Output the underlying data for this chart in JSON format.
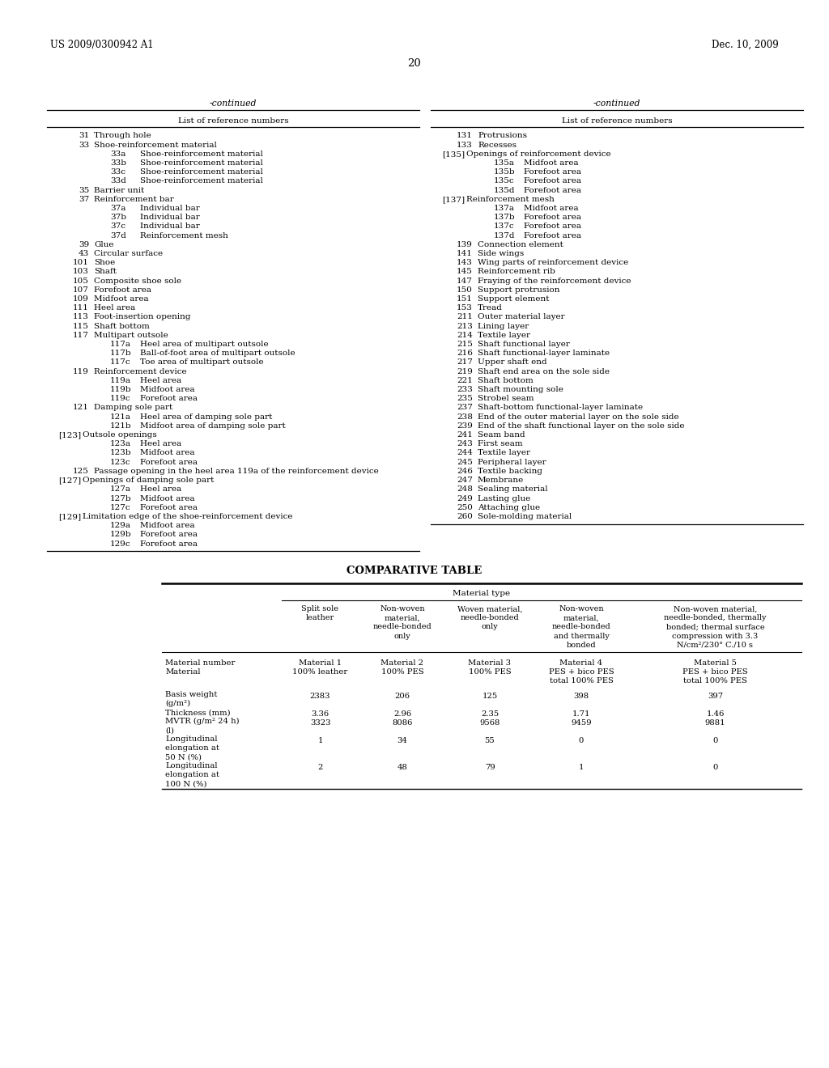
{
  "bg_color": "#ffffff",
  "header_left": "US 2009/0300942 A1",
  "header_right": "Dec. 10, 2009",
  "page_number": "20",
  "left_entries": [
    [
      "31",
      "Through hole",
      0
    ],
    [
      "33",
      "Shoe-reinforcement material",
      0
    ],
    [
      "33a",
      "Shoe-reinforcement material",
      2
    ],
    [
      "33b",
      "Shoe-reinforcement material",
      2
    ],
    [
      "33c",
      "Shoe-reinforcement material",
      2
    ],
    [
      "33d",
      "Shoe-reinforcement material",
      2
    ],
    [
      "35",
      "Barrier unit",
      0
    ],
    [
      "37",
      "Reinforcement bar",
      0
    ],
    [
      "37a",
      "Individual bar",
      2
    ],
    [
      "37b",
      "Individual bar",
      2
    ],
    [
      "37c",
      "Individual bar",
      2
    ],
    [
      "37d",
      "Reinforcement mesh",
      2
    ],
    [
      "39",
      "Glue",
      0
    ],
    [
      "43",
      "Circular surface",
      0
    ],
    [
      "101",
      "Shoe",
      0
    ],
    [
      "103",
      "Shaft",
      0
    ],
    [
      "105",
      "Composite shoe sole",
      0
    ],
    [
      "107",
      "Forefoot area",
      0
    ],
    [
      "109",
      "Midfoot area",
      0
    ],
    [
      "111",
      "Heel area",
      0
    ],
    [
      "113",
      "Foot-insertion opening",
      0
    ],
    [
      "115",
      "Shaft bottom",
      0
    ],
    [
      "117",
      "Multipart outsole",
      0
    ],
    [
      "117a",
      "Heel area of multipart outsole",
      2
    ],
    [
      "117b",
      "Ball-of-foot area of multipart outsole",
      2
    ],
    [
      "117c",
      "Toe area of multipart outsole",
      2
    ],
    [
      "119",
      "Reinforcement device",
      0
    ],
    [
      "119a",
      "Heel area",
      2
    ],
    [
      "119b",
      "Midfoot area",
      2
    ],
    [
      "119c",
      "Forefoot area",
      2
    ],
    [
      "121",
      "Damping sole part",
      0
    ],
    [
      "121a",
      "Heel area of damping sole part",
      2
    ],
    [
      "121b",
      "Midfoot area of damping sole part",
      2
    ],
    [
      "[123]",
      "Outsole openings",
      0
    ],
    [
      "123a",
      "Heel area",
      2
    ],
    [
      "123b",
      "Midfoot area",
      2
    ],
    [
      "123c",
      "Forefoot area",
      2
    ],
    [
      "125",
      "Passage opening in the heel area 119a of the reinforcement device",
      0
    ],
    [
      "[127]",
      "Openings of damping sole part",
      0
    ],
    [
      "127a",
      "Heel area",
      2
    ],
    [
      "127b",
      "Midfoot area",
      2
    ],
    [
      "127c",
      "Forefoot area",
      2
    ],
    [
      "[129]",
      "Limitation edge of the shoe-reinforcement device",
      0
    ],
    [
      "129a",
      "Midfoot area",
      2
    ],
    [
      "129b",
      "Forefoot area",
      2
    ],
    [
      "129c",
      "Forefoot area",
      2
    ]
  ],
  "right_entries": [
    [
      "131",
      "Protrusions",
      0
    ],
    [
      "133",
      "Recesses",
      0
    ],
    [
      "[135]",
      "Openings of reinforcement device",
      0
    ],
    [
      "135a",
      "Midfoot area",
      2
    ],
    [
      "135b",
      "Forefoot area",
      2
    ],
    [
      "135c",
      "Forefoot area",
      2
    ],
    [
      "135d",
      "Forefoot area",
      2
    ],
    [
      "[137]",
      "Reinforcement mesh",
      0
    ],
    [
      "137a",
      "Midfoot area",
      2
    ],
    [
      "137b",
      "Forefoot area",
      2
    ],
    [
      "137c",
      "Forefoot area",
      2
    ],
    [
      "137d",
      "Forefoot area",
      2
    ],
    [
      "139",
      "Connection element",
      0
    ],
    [
      "141",
      "Side wings",
      0
    ],
    [
      "143",
      "Wing parts of reinforcement device",
      0
    ],
    [
      "145",
      "Reinforcement rib",
      0
    ],
    [
      "147",
      "Fraying of the reinforcement device",
      0
    ],
    [
      "150",
      "Support protrusion",
      0
    ],
    [
      "151",
      "Support element",
      0
    ],
    [
      "153",
      "Tread",
      0
    ],
    [
      "211",
      "Outer material layer",
      0
    ],
    [
      "213",
      "Lining layer",
      0
    ],
    [
      "214",
      "Textile layer",
      0
    ],
    [
      "215",
      "Shaft functional layer",
      0
    ],
    [
      "216",
      "Shaft functional-layer laminate",
      0
    ],
    [
      "217",
      "Upper shaft end",
      0
    ],
    [
      "219",
      "Shaft end area on the sole side",
      0
    ],
    [
      "221",
      "Shaft bottom",
      0
    ],
    [
      "233",
      "Shaft mounting sole",
      0
    ],
    [
      "235",
      "Strobel seam",
      0
    ],
    [
      "237",
      "Shaft-bottom functional-layer laminate",
      0
    ],
    [
      "238",
      "End of the outer material layer on the sole side",
      0
    ],
    [
      "239",
      "End of the shaft functional layer on the sole side",
      0
    ],
    [
      "241",
      "Seam band",
      0
    ],
    [
      "243",
      "First seam",
      0
    ],
    [
      "244",
      "Textile layer",
      0
    ],
    [
      "245",
      "Peripheral layer",
      0
    ],
    [
      "246",
      "Textile backing",
      0
    ],
    [
      "247",
      "Membrane",
      0
    ],
    [
      "248",
      "Sealing material",
      0
    ],
    [
      "249",
      "Lasting glue",
      0
    ],
    [
      "250",
      "Attaching glue",
      0
    ],
    [
      "260",
      "Sole-molding material",
      0
    ]
  ],
  "table_title": "COMPARATIVE TABLE",
  "table_subheader": "Material type",
  "table_col_headers": [
    "",
    "Split sole\nleather",
    "Non-woven\nmaterial,\nneedle-bonded\nonly",
    "Woven material,\nneedle-bonded\nonly",
    "Non-woven\nmaterial,\nneedle-bonded\nand thermally\nbonded",
    "Non-woven material,\nneedle-bonded, thermally\nbonded; thermal surface\ncompression with 3.3\nN/cm²/230° C./10 s"
  ],
  "table_mat_number_label": "Material number",
  "table_material_label": "Material",
  "table_mat_numbers": [
    "Material 1",
    "Material 2",
    "Material 3",
    "Material 4",
    "Material 5"
  ],
  "table_materials": [
    "100% leather",
    "100% PES",
    "100% PES",
    "PES + bico PES\ntotal 100% PES",
    "PES + bico PES\ntotal 100% PES"
  ],
  "table_rows": [
    [
      "Basis weight\n(g/m²)",
      "2383",
      "206",
      "125",
      "398",
      "397"
    ],
    [
      "Thickness (mm)",
      "3.36",
      "2.96",
      "2.35",
      "1.71",
      "1.46"
    ],
    [
      "MVTR (g/m² 24 h)\n(l)",
      "3323",
      "8086",
      "9568",
      "9459",
      "9881"
    ],
    [
      "Longitudinal\nelongation at\n50 N (%)",
      "1",
      "34",
      "55",
      "0",
      "0"
    ],
    [
      "Longitudinal\nelongation at\n100 N (%)",
      "2",
      "48",
      "79",
      "1",
      "0"
    ]
  ]
}
